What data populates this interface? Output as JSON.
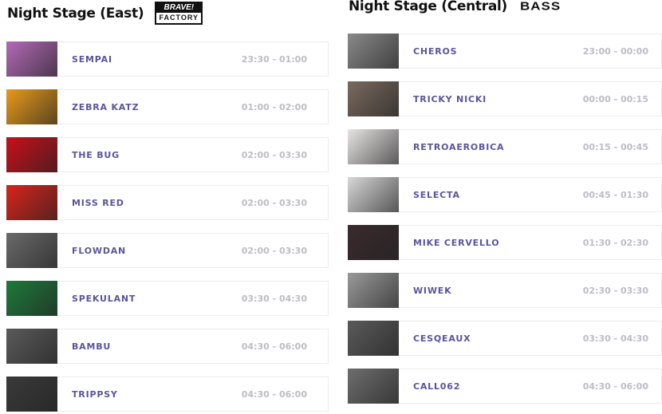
{
  "stages": [
    {
      "title": "Night Stage (East)",
      "logo": {
        "line1": "BRAVE!",
        "line2": "FACTORY"
      },
      "acts": [
        {
          "name": "SEMPAI",
          "time": "23:30 - 01:00",
          "thumb_color": "#b46ab8"
        },
        {
          "name": "ZEBRA KATZ",
          "time": "01:00 - 02:00",
          "thumb_color": "#e89a1a"
        },
        {
          "name": "THE BUG",
          "time": "02:00 - 03:30",
          "thumb_color": "#c8101a"
        },
        {
          "name": "MISS RED",
          "time": "02:00 - 03:30",
          "thumb_color": "#d8241c"
        },
        {
          "name": "FLOWDAN",
          "time": "02:00 - 03:30",
          "thumb_color": "#6a6a6a"
        },
        {
          "name": "SPEKULANT",
          "time": "03:30 - 04:30",
          "thumb_color": "#1e7a3a"
        },
        {
          "name": "BAMBU",
          "time": "04:30 - 06:00",
          "thumb_color": "#5a5a5a"
        },
        {
          "name": "TRIPPSY",
          "time": "04:30 - 06:00",
          "thumb_color": "#3a3a3a"
        }
      ]
    },
    {
      "title": "Night Stage (Central)",
      "logo": {
        "line1": "BASS"
      },
      "acts": [
        {
          "name": "CHEROS",
          "time": "23:00 - 00:00",
          "thumb_color": "#8a8a8a"
        },
        {
          "name": "TRICKY NICKI",
          "time": "00:00 - 00:15",
          "thumb_color": "#7a6a5e"
        },
        {
          "name": "RETROAEROBICA",
          "time": "00:15 - 00:45",
          "thumb_color": "#e8e4e4"
        },
        {
          "name": "SELECTA",
          "time": "00:45 - 01:30",
          "thumb_color": "#d8d8d8"
        },
        {
          "name": "MIKE CERVELLO",
          "time": "01:30 - 02:30",
          "thumb_color": "#3a2a2e"
        },
        {
          "name": "WIWEK",
          "time": "02:30 - 03:30",
          "thumb_color": "#9a9a9a"
        },
        {
          "name": "CESQEAUX",
          "time": "03:30 - 04:30",
          "thumb_color": "#5a5a5a"
        },
        {
          "name": "CALL062",
          "time": "04:30 - 06:00",
          "thumb_color": "#6e6e6e"
        }
      ]
    }
  ]
}
